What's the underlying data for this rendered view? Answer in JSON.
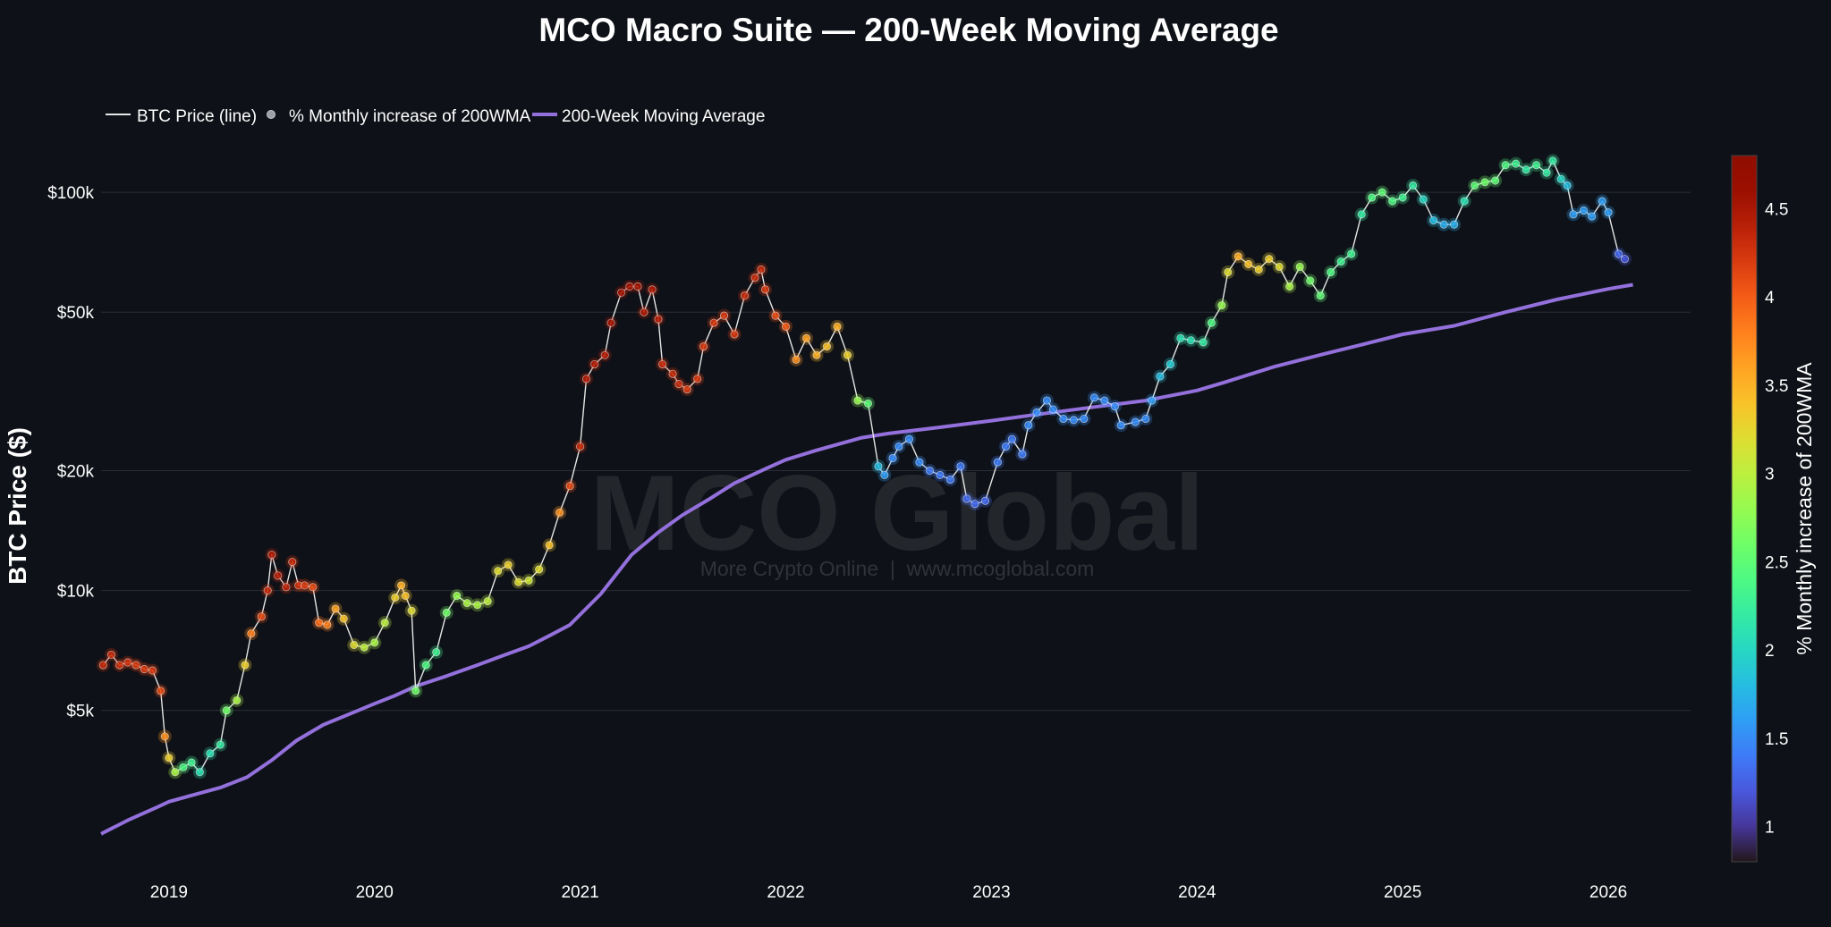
{
  "chart_data": {
    "type": "line+scatter",
    "title": "MCO Macro Suite — 200-Week Moving Average",
    "ylabel": "BTC Price ($)",
    "xlabel": "",
    "y_scale": "log",
    "ylim": [
      2300,
      140000
    ],
    "xlim": [
      2018.67,
      2026.4
    ],
    "y_ticks": [
      {
        "value": 5000,
        "label": "$5k"
      },
      {
        "value": 10000,
        "label": "$10k"
      },
      {
        "value": 20000,
        "label": "$20k"
      },
      {
        "value": 50000,
        "label": "$50k"
      },
      {
        "value": 100000,
        "label": "$100k"
      }
    ],
    "x_ticks": [
      {
        "value": 2019,
        "label": "2019"
      },
      {
        "value": 2020,
        "label": "2020"
      },
      {
        "value": 2021,
        "label": "2021"
      },
      {
        "value": 2022,
        "label": "2022"
      },
      {
        "value": 2023,
        "label": "2023"
      },
      {
        "value": 2024,
        "label": "2024"
      },
      {
        "value": 2025,
        "label": "2025"
      },
      {
        "value": 2026,
        "label": "2026"
      }
    ],
    "legend": [
      {
        "name": "BTC Price (line)",
        "kind": "line",
        "color": "#e6e6e6"
      },
      {
        "name": "% Monthly increase of 200WMA",
        "kind": "marker",
        "color": "#9aa0a6"
      },
      {
        "name": "200-Week Moving Average",
        "kind": "line",
        "color": "#9370db"
      }
    ],
    "colorbar": {
      "title": "% Monthly increase of 200WMA",
      "range": [
        0.8,
        4.8
      ],
      "ticks": [
        1,
        1.5,
        2,
        2.5,
        3,
        3.5,
        4,
        4.5
      ],
      "tick_labels": [
        "1",
        "1.5",
        "2",
        "2.5",
        "3",
        "3.5",
        "4",
        "4.5"
      ],
      "colorscale": "turbo"
    },
    "watermark": {
      "main": "MCO Global",
      "sub": "More Crypto Online  |  www.mcoglobal.com"
    },
    "series": [
      {
        "name": "200-Week Moving Average",
        "color": "#9370db",
        "points": [
          [
            2018.67,
            2450
          ],
          [
            2018.8,
            2650
          ],
          [
            2018.95,
            2870
          ],
          [
            2019.0,
            2950
          ],
          [
            2019.1,
            3050
          ],
          [
            2019.25,
            3200
          ],
          [
            2019.38,
            3400
          ],
          [
            2019.5,
            3750
          ],
          [
            2019.62,
            4200
          ],
          [
            2019.75,
            4600
          ],
          [
            2019.9,
            4950
          ],
          [
            2020.0,
            5200
          ],
          [
            2020.1,
            5450
          ],
          [
            2020.2,
            5750
          ],
          [
            2020.35,
            6100
          ],
          [
            2020.5,
            6500
          ],
          [
            2020.62,
            6850
          ],
          [
            2020.75,
            7250
          ],
          [
            2020.85,
            7700
          ],
          [
            2020.95,
            8200
          ],
          [
            2021.1,
            9800
          ],
          [
            2021.25,
            12300
          ],
          [
            2021.38,
            14000
          ],
          [
            2021.5,
            15500
          ],
          [
            2021.63,
            17000
          ],
          [
            2021.75,
            18600
          ],
          [
            2021.9,
            20200
          ],
          [
            2022.0,
            21300
          ],
          [
            2022.15,
            22500
          ],
          [
            2022.37,
            24200
          ],
          [
            2022.5,
            24800
          ],
          [
            2022.75,
            25700
          ],
          [
            2023.0,
            26700
          ],
          [
            2023.25,
            27800
          ],
          [
            2023.5,
            28900
          ],
          [
            2023.75,
            30000
          ],
          [
            2024.0,
            31800
          ],
          [
            2024.13,
            33300
          ],
          [
            2024.37,
            36400
          ],
          [
            2024.62,
            39300
          ],
          [
            2024.87,
            42300
          ],
          [
            2025.0,
            44000
          ],
          [
            2025.25,
            46200
          ],
          [
            2025.5,
            50000
          ],
          [
            2025.75,
            53800
          ],
          [
            2026.0,
            57200
          ],
          [
            2026.12,
            58600
          ]
        ]
      },
      {
        "name": "BTC Price (line)",
        "color": "#e6e6e6",
        "points": [
          [
            2018.68,
            6500,
            4.3
          ],
          [
            2018.72,
            6900,
            4.3
          ],
          [
            2018.76,
            6500,
            4.25
          ],
          [
            2018.8,
            6600,
            4.25
          ],
          [
            2018.84,
            6500,
            4.2
          ],
          [
            2018.88,
            6350,
            4.2
          ],
          [
            2018.92,
            6300,
            4.2
          ],
          [
            2018.96,
            5600,
            4.1
          ],
          [
            2018.98,
            4300,
            3.7
          ],
          [
            2019.0,
            3800,
            3.3
          ],
          [
            2019.03,
            3500,
            2.9
          ],
          [
            2019.07,
            3600,
            2.4
          ],
          [
            2019.11,
            3700,
            2.3
          ],
          [
            2019.15,
            3500,
            2.1
          ],
          [
            2019.2,
            3900,
            2.1
          ],
          [
            2019.25,
            4100,
            2.2
          ],
          [
            2019.28,
            5000,
            2.6
          ],
          [
            2019.33,
            5300,
            2.9
          ],
          [
            2019.37,
            6500,
            3.3
          ],
          [
            2019.4,
            7800,
            3.8
          ],
          [
            2019.45,
            8600,
            4.1
          ],
          [
            2019.48,
            10000,
            4.3
          ],
          [
            2019.5,
            12300,
            4.4
          ],
          [
            2019.53,
            10900,
            4.4
          ],
          [
            2019.57,
            10200,
            4.35
          ],
          [
            2019.6,
            11800,
            4.3
          ],
          [
            2019.63,
            10300,
            4.25
          ],
          [
            2019.66,
            10300,
            4.2
          ],
          [
            2019.7,
            10200,
            4.1
          ],
          [
            2019.73,
            8300,
            3.9
          ],
          [
            2019.77,
            8200,
            3.8
          ],
          [
            2019.81,
            9000,
            3.6
          ],
          [
            2019.85,
            8500,
            3.4
          ],
          [
            2019.9,
            7300,
            3.2
          ],
          [
            2019.95,
            7200,
            3.0
          ],
          [
            2020.0,
            7400,
            2.9
          ],
          [
            2020.05,
            8300,
            3.0
          ],
          [
            2020.1,
            9600,
            3.3
          ],
          [
            2020.13,
            10300,
            3.5
          ],
          [
            2020.15,
            9700,
            3.4
          ],
          [
            2020.18,
            8900,
            3.2
          ],
          [
            2020.2,
            5600,
            2.6
          ],
          [
            2020.25,
            6500,
            2.4
          ],
          [
            2020.3,
            7000,
            2.3
          ],
          [
            2020.35,
            8800,
            2.6
          ],
          [
            2020.4,
            9700,
            2.8
          ],
          [
            2020.45,
            9300,
            2.9
          ],
          [
            2020.5,
            9200,
            2.9
          ],
          [
            2020.55,
            9400,
            3.0
          ],
          [
            2020.6,
            11200,
            3.2
          ],
          [
            2020.65,
            11600,
            3.3
          ],
          [
            2020.7,
            10500,
            3.2
          ],
          [
            2020.75,
            10600,
            3.1
          ],
          [
            2020.8,
            11300,
            3.2
          ],
          [
            2020.85,
            13000,
            3.4
          ],
          [
            2020.9,
            15700,
            3.7
          ],
          [
            2020.95,
            18300,
            4.1
          ],
          [
            2021.0,
            23000,
            4.3
          ],
          [
            2021.03,
            34000,
            4.4
          ],
          [
            2021.07,
            37000,
            4.4
          ],
          [
            2021.12,
            39000,
            4.4
          ],
          [
            2021.15,
            47000,
            4.5
          ],
          [
            2021.2,
            56000,
            4.5
          ],
          [
            2021.24,
            58000,
            4.5
          ],
          [
            2021.28,
            58000,
            4.5
          ],
          [
            2021.31,
            50000,
            4.45
          ],
          [
            2021.35,
            57000,
            4.45
          ],
          [
            2021.38,
            48000,
            4.4
          ],
          [
            2021.4,
            37000,
            4.3
          ],
          [
            2021.45,
            35000,
            4.3
          ],
          [
            2021.48,
            33000,
            4.3
          ],
          [
            2021.52,
            32000,
            4.2
          ],
          [
            2021.57,
            34000,
            4.2
          ],
          [
            2021.6,
            41000,
            4.2
          ],
          [
            2021.65,
            47000,
            4.2
          ],
          [
            2021.7,
            49000,
            4.2
          ],
          [
            2021.75,
            44000,
            4.2
          ],
          [
            2021.8,
            55000,
            4.3
          ],
          [
            2021.85,
            61000,
            4.3
          ],
          [
            2021.88,
            64000,
            4.3
          ],
          [
            2021.9,
            57000,
            4.2
          ],
          [
            2021.95,
            49000,
            4.1
          ],
          [
            2022.0,
            46000,
            4.0
          ],
          [
            2022.05,
            38000,
            3.7
          ],
          [
            2022.1,
            43000,
            3.6
          ],
          [
            2022.15,
            39000,
            3.5
          ],
          [
            2022.2,
            41000,
            3.4
          ],
          [
            2022.25,
            46000,
            3.5
          ],
          [
            2022.3,
            39000,
            3.3
          ],
          [
            2022.35,
            30000,
            2.8
          ],
          [
            2022.4,
            29500,
            2.5
          ],
          [
            2022.45,
            20500,
            1.8
          ],
          [
            2022.48,
            19500,
            1.6
          ],
          [
            2022.52,
            21500,
            1.5
          ],
          [
            2022.55,
            23000,
            1.5
          ],
          [
            2022.6,
            24000,
            1.5
          ],
          [
            2022.65,
            21000,
            1.5
          ],
          [
            2022.7,
            20000,
            1.4
          ],
          [
            2022.75,
            19500,
            1.4
          ],
          [
            2022.8,
            19000,
            1.4
          ],
          [
            2022.85,
            20500,
            1.4
          ],
          [
            2022.88,
            17000,
            1.3
          ],
          [
            2022.92,
            16500,
            1.3
          ],
          [
            2022.97,
            16800,
            1.3
          ],
          [
            2023.03,
            21000,
            1.4
          ],
          [
            2023.07,
            23000,
            1.4
          ],
          [
            2023.1,
            24000,
            1.4
          ],
          [
            2023.15,
            22000,
            1.4
          ],
          [
            2023.18,
            26000,
            1.5
          ],
          [
            2023.22,
            28000,
            1.5
          ],
          [
            2023.27,
            30000,
            1.5
          ],
          [
            2023.3,
            28500,
            1.5
          ],
          [
            2023.35,
            27000,
            1.5
          ],
          [
            2023.4,
            26800,
            1.5
          ],
          [
            2023.45,
            27000,
            1.5
          ],
          [
            2023.5,
            30500,
            1.5
          ],
          [
            2023.55,
            30000,
            1.5
          ],
          [
            2023.6,
            29000,
            1.5
          ],
          [
            2023.63,
            26000,
            1.5
          ],
          [
            2023.7,
            26500,
            1.5
          ],
          [
            2023.75,
            27000,
            1.5
          ],
          [
            2023.78,
            30000,
            1.6
          ],
          [
            2023.82,
            34500,
            1.8
          ],
          [
            2023.87,
            37000,
            1.9
          ],
          [
            2023.92,
            43000,
            2.1
          ],
          [
            2023.97,
            42500,
            2.1
          ],
          [
            2024.03,
            42000,
            2.2
          ],
          [
            2024.07,
            47000,
            2.4
          ],
          [
            2024.12,
            52000,
            2.8
          ],
          [
            2024.15,
            63000,
            3.2
          ],
          [
            2024.2,
            69000,
            3.5
          ],
          [
            2024.25,
            66000,
            3.4
          ],
          [
            2024.3,
            64000,
            3.3
          ],
          [
            2024.35,
            68000,
            3.3
          ],
          [
            2024.4,
            65000,
            3.2
          ],
          [
            2024.45,
            58000,
            2.9
          ],
          [
            2024.5,
            65000,
            2.8
          ],
          [
            2024.55,
            60000,
            2.6
          ],
          [
            2024.6,
            55000,
            2.5
          ],
          [
            2024.65,
            63000,
            2.4
          ],
          [
            2024.7,
            67000,
            2.3
          ],
          [
            2024.75,
            70000,
            2.3
          ],
          [
            2024.8,
            88000,
            2.2
          ],
          [
            2024.85,
            97000,
            2.4
          ],
          [
            2024.9,
            100000,
            2.5
          ],
          [
            2024.95,
            95000,
            2.4
          ],
          [
            2025.0,
            97000,
            2.3
          ],
          [
            2025.05,
            104000,
            2.2
          ],
          [
            2025.1,
            96000,
            2.0
          ],
          [
            2025.15,
            85000,
            1.8
          ],
          [
            2025.2,
            83000,
            1.7
          ],
          [
            2025.25,
            83000,
            1.7
          ],
          [
            2025.3,
            95000,
            2.1
          ],
          [
            2025.35,
            104000,
            2.5
          ],
          [
            2025.4,
            106000,
            2.6
          ],
          [
            2025.45,
            107000,
            2.5
          ],
          [
            2025.5,
            117000,
            2.4
          ],
          [
            2025.55,
            118000,
            2.3
          ],
          [
            2025.6,
            114000,
            2.2
          ],
          [
            2025.65,
            117000,
            2.3
          ],
          [
            2025.7,
            112000,
            2.2
          ],
          [
            2025.73,
            120000,
            2.2
          ],
          [
            2025.77,
            108000,
            2.0
          ],
          [
            2025.8,
            104000,
            1.8
          ],
          [
            2025.83,
            88000,
            1.6
          ],
          [
            2025.88,
            90000,
            1.6
          ],
          [
            2025.92,
            87000,
            1.6
          ],
          [
            2025.97,
            95000,
            1.6
          ],
          [
            2026.0,
            89000,
            1.6
          ],
          [
            2026.05,
            70000,
            1.3
          ],
          [
            2026.08,
            68000,
            1.2
          ]
        ]
      }
    ]
  }
}
